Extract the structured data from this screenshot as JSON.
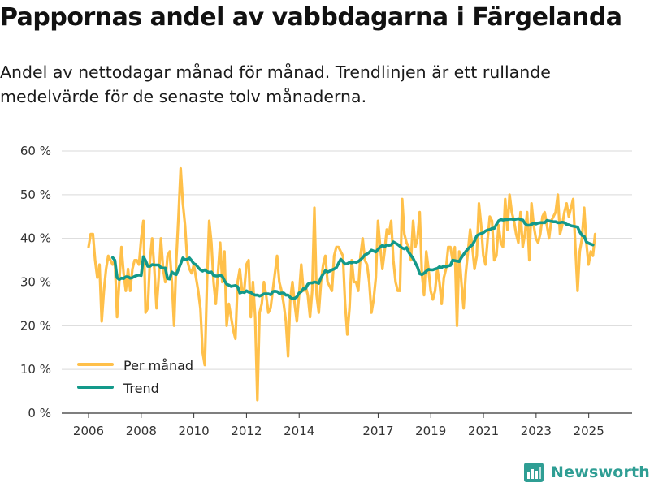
{
  "title": "Pappornas andel av vabbdagarna i Färgelanda",
  "subtitle": "Andel av nettodagar månad för månad. Trendlinjen är ett rullande medelvärde för de senaste tolv månaderna.",
  "brand": "Newsworthy",
  "colors": {
    "monthly": "#ffc04a",
    "trend": "#13998a",
    "grid": "#d9d9d9",
    "axis": "#333333",
    "brand": "#2f9e94"
  },
  "chart_data": {
    "type": "line",
    "title": "Pappornas andel av vabbdagarna i Färgelanda",
    "xlabel": "",
    "ylabel": "",
    "ylim": [
      0,
      60
    ],
    "y_ticks": [
      0,
      10,
      20,
      30,
      40,
      50,
      60
    ],
    "y_tick_labels": [
      "0 %",
      "10 %",
      "20 %",
      "30 %",
      "40 %",
      "50 %",
      "60 %"
    ],
    "x_start": 2006.0,
    "x_end": 2025.75,
    "x_ticks": [
      2006,
      2008,
      2010,
      2012,
      2014,
      2017,
      2019,
      2021,
      2023,
      2025
    ],
    "x_tick_labels": [
      "2006",
      "2008",
      "2010",
      "2012",
      "2014",
      "2017",
      "2019",
      "2021",
      "2023",
      "2025"
    ],
    "legend": {
      "position": "bottom-left",
      "entries": [
        "Per månad",
        "Trend"
      ]
    },
    "series": [
      {
        "name": "Per månad",
        "x_start": 2006.0,
        "step": 0.0833,
        "values": [
          38,
          41,
          41,
          35,
          31,
          34,
          21,
          28,
          33,
          36,
          35,
          34,
          35,
          22,
          30,
          38,
          32,
          28,
          33,
          28,
          33,
          35,
          35,
          34,
          40,
          44,
          23,
          24,
          35,
          40,
          33,
          24,
          31,
          40,
          33,
          30,
          36,
          37,
          30,
          20,
          35,
          45,
          56,
          48,
          43,
          35,
          33,
          32,
          34,
          31,
          28,
          24,
          14,
          11,
          30,
          44,
          39,
          30,
          25,
          32,
          39,
          30,
          37,
          20,
          25,
          22,
          19,
          17,
          30,
          33,
          28,
          28,
          34,
          35,
          22,
          30,
          22,
          3,
          23,
          25,
          30,
          27,
          23,
          24,
          28,
          32,
          36,
          30,
          28,
          25,
          21,
          13,
          26,
          30,
          25,
          21,
          27,
          34,
          28,
          29,
          27,
          22,
          28,
          47,
          27,
          23,
          30,
          34,
          36,
          30,
          29,
          28,
          36,
          38,
          38,
          37,
          36,
          25,
          18,
          24,
          35,
          30,
          30,
          28,
          36,
          40,
          35,
          34,
          30,
          23,
          26,
          31,
          44,
          38,
          33,
          37,
          42,
          41,
          44,
          35,
          30,
          28,
          28,
          49,
          41,
          39,
          38,
          35,
          44,
          38,
          40,
          46,
          32,
          27,
          37,
          33,
          28,
          26,
          28,
          33,
          30,
          25,
          31,
          33,
          38,
          38,
          35,
          38,
          20,
          37,
          30,
          24,
          32,
          37,
          42,
          38,
          33,
          36,
          48,
          43,
          36,
          34,
          40,
          45,
          44,
          35,
          36,
          43,
          39,
          38,
          49,
          42,
          50,
          46,
          44,
          41,
          39,
          46,
          38,
          41,
          46,
          35,
          48,
          43,
          40,
          39,
          41,
          45,
          46,
          43,
          40,
          44,
          45,
          46,
          50,
          41,
          43,
          46,
          48,
          45,
          47,
          49,
          38,
          28,
          37,
          40,
          47,
          39,
          34,
          37,
          36,
          41
        ]
      },
      {
        "name": "Trend",
        "x_start": 2006.917,
        "step": 0.0833,
        "values": [
          35.6,
          35,
          31,
          30.6,
          30.9,
          30.8,
          31.2,
          31.2,
          30.9,
          31,
          31.3,
          31.5,
          31.6,
          31.5,
          35.8,
          34.9,
          33.6,
          33.6,
          34,
          33.9,
          33.9,
          33.9,
          33.3,
          33.2,
          33.2,
          30.8,
          30.7,
          32.3,
          31.9,
          31.7,
          33,
          34.2,
          35.5,
          35.1,
          35.2,
          35.5,
          34.9,
          34.2,
          34,
          33.3,
          32.8,
          32.5,
          32.8,
          32.4,
          32.2,
          32.3,
          31.5,
          31.4,
          31.4,
          31.6,
          31.3,
          30.3,
          29.5,
          29.3,
          29,
          29.1,
          29.2,
          28.9,
          27.5,
          27.7,
          27.6,
          28,
          27.7,
          27.6,
          27.2,
          27,
          27,
          26.8,
          27,
          27.3,
          27.3,
          27.3,
          27.1,
          27.8,
          27.9,
          27.8,
          27.4,
          27.5,
          27.5,
          27,
          27,
          26.5,
          26.2,
          26.3,
          26.6,
          27.5,
          27.8,
          28.5,
          28.5,
          29.5,
          29.8,
          29.8,
          30,
          29.9,
          29.7,
          31,
          31.8,
          32.6,
          32.3,
          32.5,
          32.8,
          33,
          33.3,
          34.3,
          35.2,
          34.7,
          34.1,
          34.2,
          34.5,
          34.4,
          34.6,
          34.5,
          34.7,
          35.1,
          35.6,
          36.2,
          36.4,
          36.8,
          37.3,
          37.1,
          36.9,
          37.5,
          38,
          38.4,
          38.1,
          38.5,
          38.4,
          38.5,
          39.2,
          38.9,
          38.6,
          38.2,
          37.8,
          37.6,
          37.9,
          36.8,
          36.1,
          35.4,
          34.4,
          33.4,
          31.9,
          31.7,
          32,
          32.5,
          32.9,
          32.8,
          32.8,
          33,
          33.1,
          33.5,
          33.3,
          33.7,
          33.5,
          33.7,
          33.8,
          35,
          34.9,
          34.8,
          34.7,
          35.6,
          36.3,
          37,
          37.6,
          38.1,
          38.5,
          39.4,
          40.6,
          40.9,
          41.1,
          41.3,
          41.7,
          41.9,
          42,
          42.3,
          42.3,
          43.2,
          44,
          44.3,
          44.2,
          44.3,
          44.3,
          44.4,
          44.4,
          44.3,
          44.4,
          44.5,
          44.3,
          44.2,
          43.4,
          43,
          43,
          43.2,
          43.5,
          43.3,
          43.5,
          43.6,
          43.6,
          43.6,
          44.1,
          44,
          43.9,
          43.8,
          43.8,
          43.6,
          43.6,
          43.7,
          43.6,
          43.2,
          43.1,
          42.9,
          42.8,
          42.7,
          42.6,
          41.5,
          40.7,
          40.5,
          39.2,
          38.9,
          38.7,
          38.5
        ]
      }
    ]
  }
}
